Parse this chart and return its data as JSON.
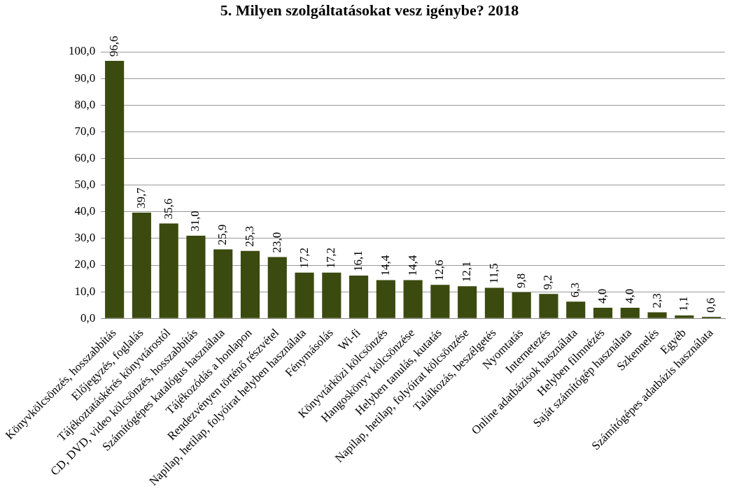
{
  "chart_data": {
    "type": "bar",
    "title": "5. Milyen szolgáltatásokat vesz igénybe? 2018",
    "categories": [
      "Könyvkölcsönzés, hosszabbítás",
      "Előjegyzés, foglalás",
      "Tájékoztatáskérés könyvtárostól",
      "CD, DVD, video kölcsönzés, hosszabbítás",
      "Számítógépes katalógus használata",
      "Tájékozódás a honlapon",
      "Rendezvényen történő részvétel",
      "Napilap, hetilap, folyóirat helyben használata",
      "Fénymásolás",
      "Wi-fi",
      "Könyvtárközi kölcsönzés",
      "Hangoskönyv kölcsönzése",
      "Helyben tanulás, kutatás",
      "Napilap, hetilap, folyóirat kölcsönzése",
      "Találkozás, beszélgetés",
      "Nyomtatás",
      "Internetezés",
      "Online adatbázisok használata",
      "Helyben filmnézés",
      "Saját számítógép használata",
      "Szkennelés",
      "Egyéb",
      "Számítógépes adatbázis használata"
    ],
    "values": [
      96.6,
      39.7,
      35.6,
      31.0,
      25.9,
      25.3,
      23.0,
      17.2,
      17.2,
      16.1,
      14.4,
      14.4,
      12.6,
      12.1,
      11.5,
      9.8,
      9.2,
      6.3,
      4.0,
      4.0,
      2.3,
      1.1,
      0.6
    ],
    "value_labels": [
      "96,6",
      "39,7",
      "35,6",
      "31,0",
      "25,9",
      "25,3",
      "23,0",
      "17,2",
      "17,2",
      "16,1",
      "14,4",
      "14,4",
      "12,6",
      "12,1",
      "11,5",
      "9,8",
      "9,2",
      "6,3",
      "4,0",
      "4,0",
      "2,3",
      "1,1",
      "0,6"
    ],
    "color": "#3b4a0e",
    "ylim": [
      0,
      100
    ],
    "yticks": [
      {
        "value": 0,
        "label": "0,0"
      },
      {
        "value": 10,
        "label": "10,0"
      },
      {
        "value": 20,
        "label": "20,0"
      },
      {
        "value": 30,
        "label": "30,0"
      },
      {
        "value": 40,
        "label": "40,0"
      },
      {
        "value": 50,
        "label": "50,0"
      },
      {
        "value": 60,
        "label": "60,0"
      },
      {
        "value": 70,
        "label": "70,0"
      },
      {
        "value": 80,
        "label": "80,0"
      },
      {
        "value": 90,
        "label": "90,0"
      },
      {
        "value": 100,
        "label": "100,0"
      }
    ],
    "grid": "y",
    "legend": false
  }
}
